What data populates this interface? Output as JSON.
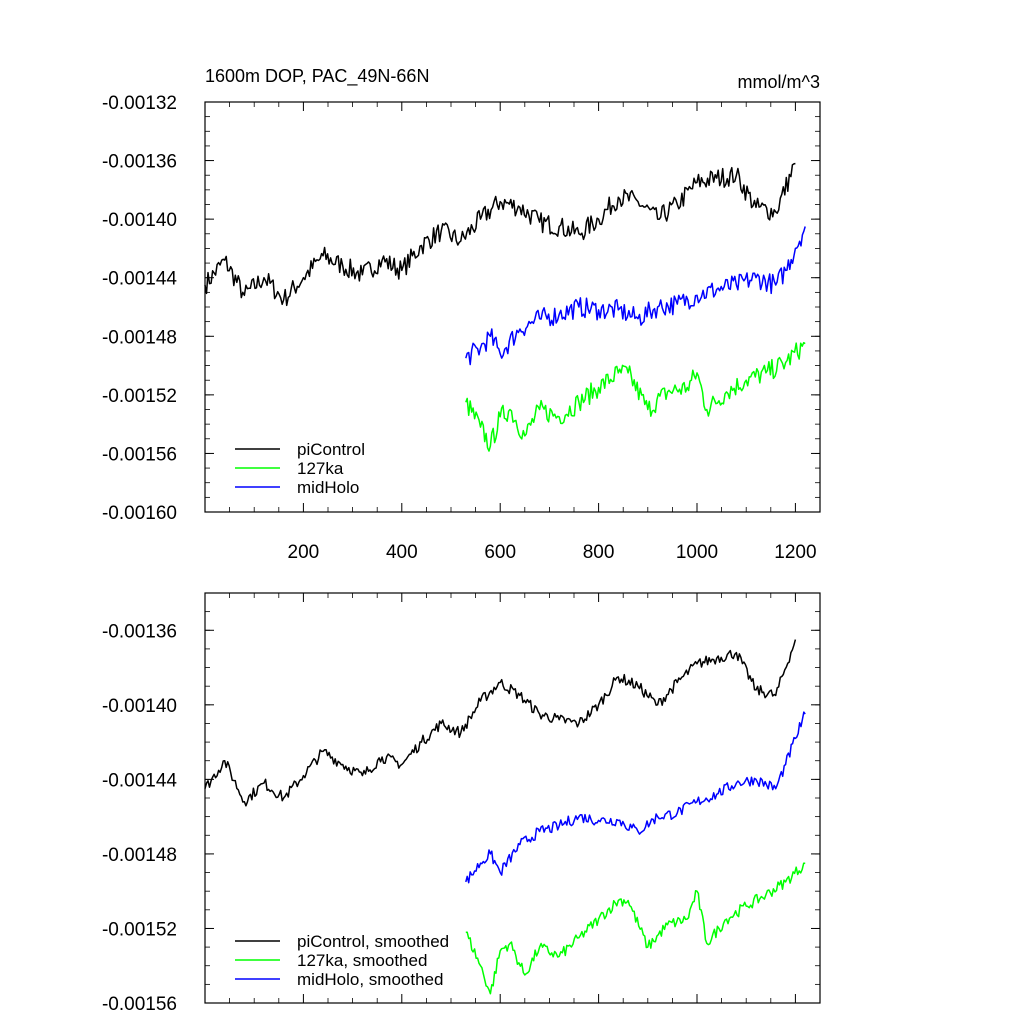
{
  "chart_data": [
    {
      "type": "line",
      "title": "1600m DOP, PAC_49N-66N",
      "units": "mmol/m^3",
      "xlim": [
        0,
        1250
      ],
      "ylim": [
        -0.0016,
        -0.00132
      ],
      "xticks": [
        200,
        400,
        600,
        800,
        1000,
        1200
      ],
      "xtick_labels": [
        "200",
        "400",
        "600",
        "800",
        "1000",
        "1200"
      ],
      "yticks": [
        -0.00132,
        -0.00136,
        -0.0014,
        -0.00144,
        -0.00148,
        -0.00152,
        -0.00156,
        -0.0016
      ],
      "ytick_labels": [
        "-0.00132",
        "-0.00136",
        "-0.00140",
        "-0.00144",
        "-0.00148",
        "-0.00152",
        "-0.00156",
        "-0.00160"
      ],
      "legend_position": "bottom-left",
      "series": [
        {
          "name": "piControl",
          "color": "#000000",
          "x": [
            0,
            40,
            80,
            120,
            160,
            200,
            240,
            280,
            320,
            360,
            400,
            440,
            480,
            520,
            560,
            600,
            640,
            680,
            720,
            760,
            800,
            840,
            880,
            920,
            960,
            1000,
            1040,
            1080,
            1120,
            1160,
            1200
          ],
          "y": [
            -0.001445,
            -0.001428,
            -0.001452,
            -0.00144,
            -0.001455,
            -0.00144,
            -0.001425,
            -0.001432,
            -0.001438,
            -0.001428,
            -0.001435,
            -0.001418,
            -0.001408,
            -0.001415,
            -0.0014,
            -0.001388,
            -0.001392,
            -0.001402,
            -0.001405,
            -0.00141,
            -0.0014,
            -0.001385,
            -0.001388,
            -0.0014,
            -0.00139,
            -0.001375,
            -0.001372,
            -0.00137,
            -0.001392,
            -0.001395,
            -0.001362
          ]
        },
        {
          "name": "127ka",
          "color": "#00ff00",
          "x": [
            530,
            560,
            580,
            600,
            620,
            650,
            680,
            720,
            760,
            800,
            840,
            860,
            900,
            940,
            980,
            1000,
            1020,
            1060,
            1100,
            1140,
            1180,
            1220
          ],
          "y": [
            -0.001525,
            -0.001542,
            -0.001555,
            -0.001535,
            -0.00153,
            -0.001548,
            -0.00153,
            -0.001535,
            -0.001525,
            -0.001515,
            -0.001505,
            -0.001505,
            -0.00153,
            -0.001518,
            -0.001515,
            -0.001505,
            -0.00153,
            -0.001518,
            -0.00151,
            -0.001505,
            -0.001498,
            -0.001485
          ]
        },
        {
          "name": "midHolo",
          "color": "#0000ff",
          "x": [
            530,
            560,
            580,
            600,
            640,
            680,
            720,
            760,
            800,
            840,
            880,
            920,
            960,
            1000,
            1040,
            1080,
            1120,
            1160,
            1180,
            1200,
            1220
          ],
          "y": [
            -0.001495,
            -0.001488,
            -0.00148,
            -0.001492,
            -0.001475,
            -0.001468,
            -0.001465,
            -0.00146,
            -0.001462,
            -0.001462,
            -0.001468,
            -0.00146,
            -0.001458,
            -0.001452,
            -0.001448,
            -0.001445,
            -0.00144,
            -0.001445,
            -0.001435,
            -0.00142,
            -0.001405
          ]
        }
      ]
    },
    {
      "type": "line",
      "xlim": [
        0,
        1250
      ],
      "ylim": [
        -0.00156,
        -0.00134
      ],
      "xticks": [
        200,
        400,
        600,
        800,
        1000,
        1200
      ],
      "yticks": [
        -0.00136,
        -0.0014,
        -0.00144,
        -0.00148,
        -0.00152,
        -0.00156
      ],
      "ytick_labels": [
        "-0.00136",
        "-0.00140",
        "-0.00144",
        "-0.00148",
        "-0.00152",
        "-0.00156"
      ],
      "legend_position": "bottom-left",
      "series": [
        {
          "name": "piControl, smoothed",
          "color": "#000000",
          "x": [
            0,
            40,
            80,
            120,
            160,
            200,
            240,
            280,
            320,
            360,
            400,
            440,
            480,
            520,
            560,
            600,
            640,
            680,
            720,
            760,
            800,
            840,
            880,
            920,
            960,
            1000,
            1040,
            1080,
            1120,
            1160,
            1200
          ],
          "y": [
            -0.001445,
            -0.00143,
            -0.001452,
            -0.001442,
            -0.00145,
            -0.001438,
            -0.001425,
            -0.001432,
            -0.001438,
            -0.001428,
            -0.001432,
            -0.00142,
            -0.00141,
            -0.001415,
            -0.001398,
            -0.001388,
            -0.001395,
            -0.001405,
            -0.001408,
            -0.00141,
            -0.0014,
            -0.001385,
            -0.00139,
            -0.0014,
            -0.001388,
            -0.001378,
            -0.001375,
            -0.001372,
            -0.001392,
            -0.001395,
            -0.001365
          ]
        },
        {
          "name": "127ka, smoothed",
          "color": "#00ff00",
          "x": [
            530,
            560,
            580,
            600,
            620,
            650,
            680,
            720,
            760,
            800,
            840,
            860,
            900,
            940,
            980,
            1000,
            1020,
            1060,
            1100,
            1140,
            1180,
            1220
          ],
          "y": [
            -0.001522,
            -0.00154,
            -0.001555,
            -0.001532,
            -0.001528,
            -0.001545,
            -0.00153,
            -0.001535,
            -0.001525,
            -0.001515,
            -0.001505,
            -0.001505,
            -0.00153,
            -0.001518,
            -0.001515,
            -0.0015,
            -0.001528,
            -0.001515,
            -0.001508,
            -0.001502,
            -0.001495,
            -0.001485
          ]
        },
        {
          "name": "midHolo, smoothed",
          "color": "#0000ff",
          "x": [
            530,
            560,
            580,
            600,
            640,
            680,
            720,
            760,
            800,
            840,
            880,
            920,
            960,
            1000,
            1040,
            1080,
            1120,
            1160,
            1180,
            1200,
            1220
          ],
          "y": [
            -0.001495,
            -0.001485,
            -0.00148,
            -0.00149,
            -0.001475,
            -0.001468,
            -0.001465,
            -0.00146,
            -0.001462,
            -0.001462,
            -0.001468,
            -0.00146,
            -0.001458,
            -0.001452,
            -0.001448,
            -0.001442,
            -0.00144,
            -0.001445,
            -0.001432,
            -0.001418,
            -0.001405
          ]
        }
      ]
    }
  ]
}
